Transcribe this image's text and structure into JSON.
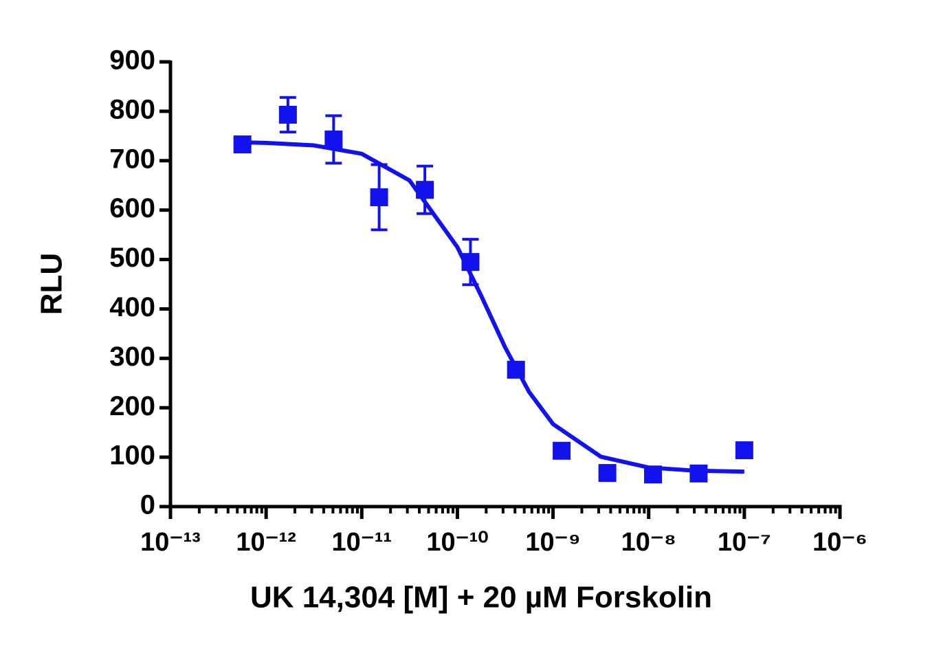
{
  "chart_data": {
    "type": "scatter",
    "x_label": "UK 14,304 [M] + 20 µM Forskolin",
    "y_label": "RLU",
    "xscale": "log",
    "xlim": [
      1e-13,
      1e-06
    ],
    "xticks": [
      {
        "value": 1e-13,
        "label": "10⁻¹³"
      },
      {
        "value": 1e-12,
        "label": "10⁻¹²"
      },
      {
        "value": 1e-11,
        "label": "10⁻¹¹"
      },
      {
        "value": 1e-10,
        "label": "10⁻¹⁰"
      },
      {
        "value": 1e-09,
        "label": "10⁻⁹"
      },
      {
        "value": 1e-08,
        "label": "10⁻⁸"
      },
      {
        "value": 1e-07,
        "label": "10⁻⁷"
      },
      {
        "value": 1e-06,
        "label": "10⁻⁶"
      }
    ],
    "ylim": [
      0,
      900
    ],
    "yticks": [
      0,
      100,
      200,
      300,
      400,
      500,
      600,
      700,
      800,
      900
    ],
    "series": [
      {
        "type": "scatter",
        "color": "#1212ee",
        "x": [
          5.65e-13,
          1.69e-12,
          5.08e-12,
          1.52e-11,
          4.57e-11,
          1.37e-10,
          4.1e-10,
          1.23e-09,
          3.7e-09,
          1.11e-08,
          3.33e-08,
          1e-07
        ],
        "values": [
          733,
          793,
          743,
          626,
          641,
          495,
          277,
          113,
          68,
          65,
          67,
          114
        ],
        "errors": [
          null,
          35,
          48,
          66,
          48,
          46,
          12,
          null,
          null,
          null,
          null,
          null
        ]
      },
      {
        "type": "line",
        "color": "#1212ee",
        "x": [
          5.65e-13,
          1e-12,
          3.16e-12,
          1e-11,
          3.16e-11,
          1e-10,
          1.78e-10,
          3.16e-10,
          5.62e-10,
          1e-09,
          3.16e-09,
          1e-08,
          3.16e-08,
          1e-07
        ],
        "values": [
          737,
          736,
          731,
          714,
          660,
          525,
          426,
          322,
          232,
          167,
          101,
          79,
          72.5,
          70.7
        ]
      }
    ]
  }
}
